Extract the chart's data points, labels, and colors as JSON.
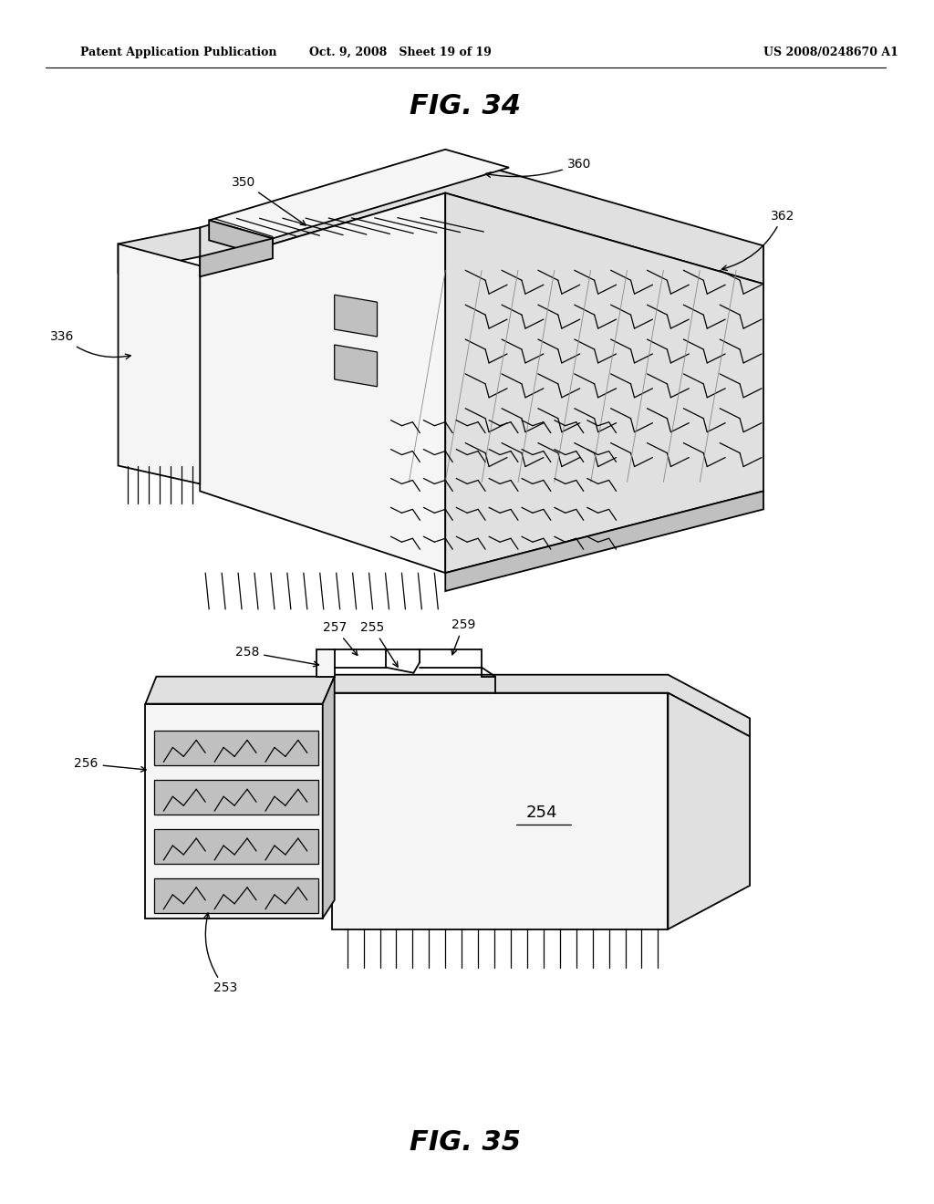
{
  "background_color": "#ffffff",
  "header_left": "Patent Application Publication",
  "header_mid": "Oct. 9, 2008   Sheet 19 of 19",
  "header_right": "US 2008/0248670 A1",
  "fig34_title": "FIG. 34",
  "fig35_title": "FIG. 35",
  "line_color": "#000000",
  "fill_light": "#f5f5f5",
  "fill_mid": "#e0e0e0",
  "fill_dark": "#c0c0c0",
  "fill_darker": "#a0a0a0",
  "fill_white": "#ffffff"
}
